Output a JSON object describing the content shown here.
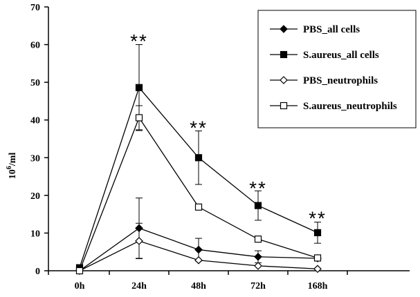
{
  "chart_data": {
    "type": "line",
    "ylabel_base": "10",
    "ylabel_sup": "6",
    "ylabel_rest": "/ml",
    "ylim": [
      0,
      70
    ],
    "yticks": [
      "0",
      "10",
      "20",
      "30",
      "40",
      "50",
      "60",
      "70"
    ],
    "categories": [
      "0h",
      "24h",
      "48h",
      "72h",
      "168h"
    ],
    "series": [
      {
        "name": "PBS_all cells",
        "marker": "diamond-filled",
        "values": [
          0,
          11.3,
          5.6,
          3.7,
          3.3
        ],
        "errors": [
          0,
          8.0,
          3.0,
          1.6,
          0.6
        ]
      },
      {
        "name": "S.aureus_all cells",
        "marker": "square-filled",
        "values": [
          0.8,
          48.6,
          30,
          17.3,
          10.1
        ],
        "errors": [
          0,
          11.4,
          7.1,
          3.9,
          2.8
        ]
      },
      {
        "name": "PBS_neutrophils",
        "marker": "diamond-open",
        "values": [
          0,
          7.9,
          2.8,
          1.3,
          0.5
        ],
        "errors": [
          0,
          4.7,
          0,
          0,
          0
        ]
      },
      {
        "name": "S.aureus_neutrophils",
        "marker": "square-open",
        "values": [
          0,
          40.6,
          16.9,
          8.4,
          3.4
        ],
        "errors": [
          0,
          3.2,
          0,
          0,
          0
        ]
      }
    ],
    "annotations": [
      {
        "category": "24h",
        "text": "**",
        "y": 61
      },
      {
        "category": "48h",
        "text": "**",
        "y": 38
      },
      {
        "category": "72h",
        "text": "**",
        "y": 22
      },
      {
        "category": "168h",
        "text": "**",
        "y": 14
      }
    ],
    "grid": false,
    "legend_position": "top-right"
  }
}
